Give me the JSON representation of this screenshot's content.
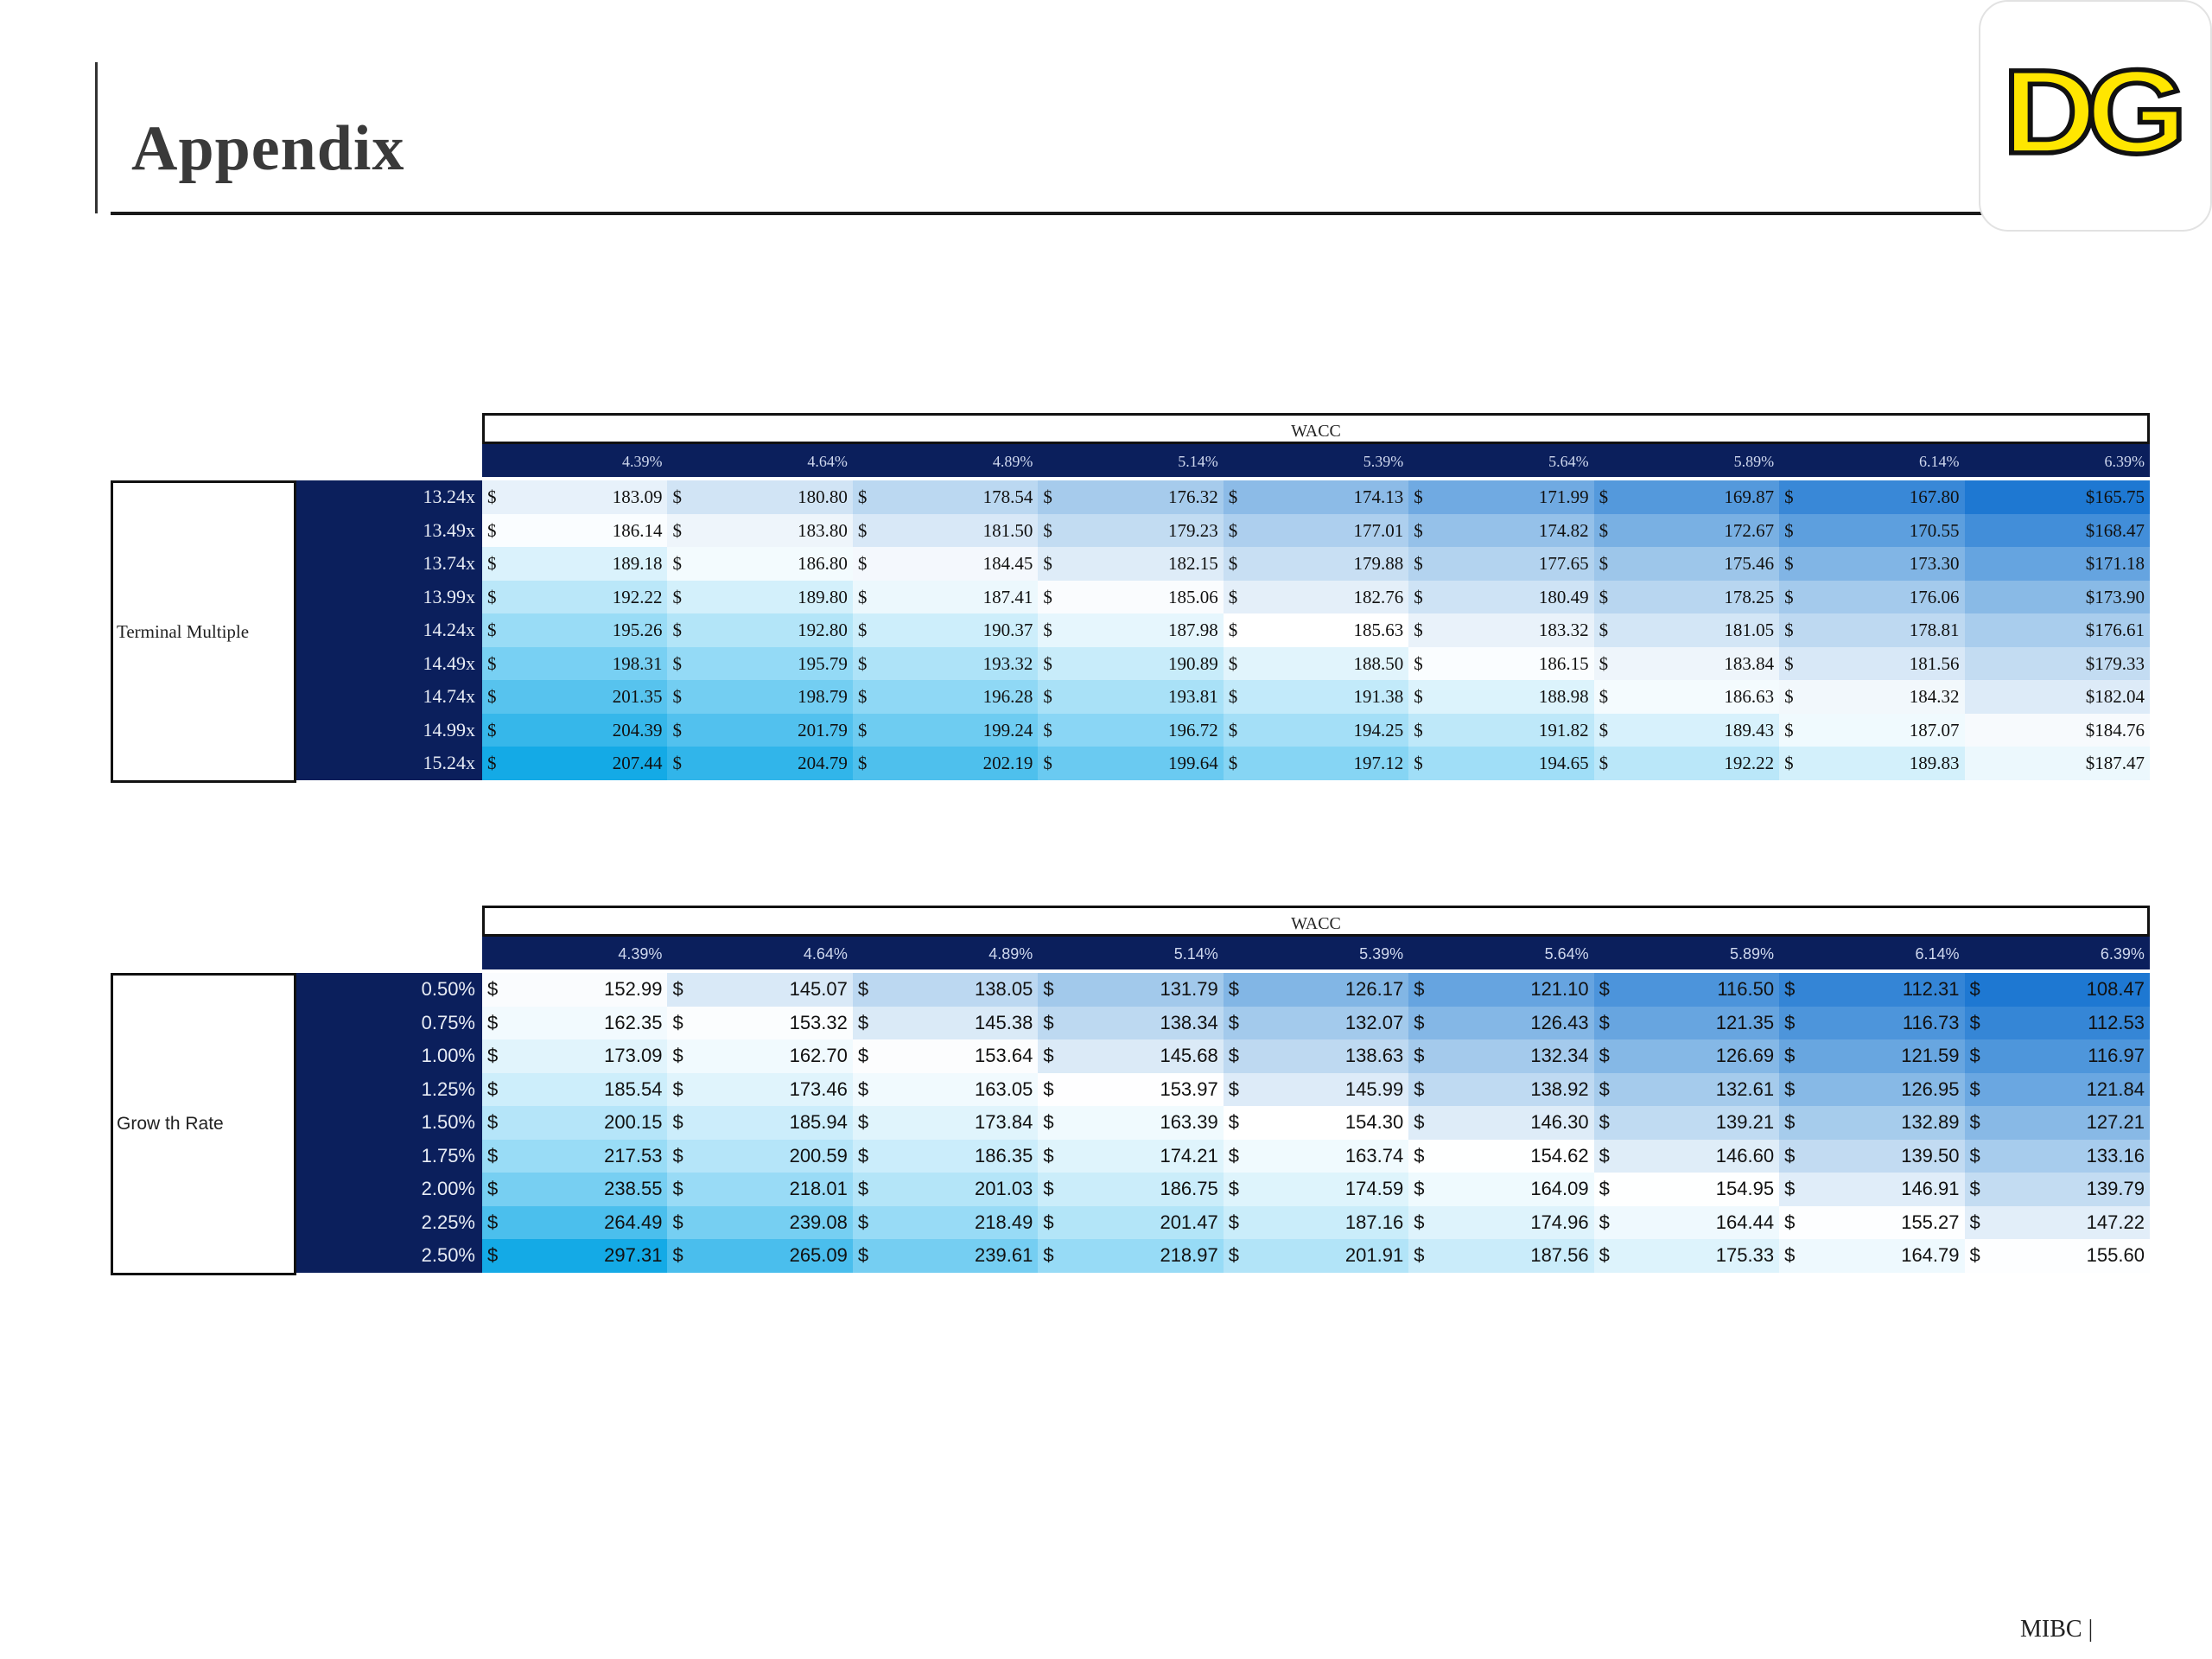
{
  "header": {
    "title": "Appendix",
    "logo_text": "DG"
  },
  "colors": {
    "navy": "#0b1f5c",
    "heat_light": "#ffffff",
    "heat_mid": "#a9d8f0",
    "heat_dark": "#1a86d6"
  },
  "tables": [
    {
      "column_group_label": "WACC",
      "row_label": "Terminal Multiple",
      "columns": [
        "4.39%",
        "4.64%",
        "4.89%",
        "5.14%",
        "5.39%",
        "5.64%",
        "5.89%",
        "6.14%",
        "6.39%"
      ],
      "rows": [
        {
          "label": "13.24x",
          "cells": [
            [
              "$",
              "183.09"
            ],
            [
              "$",
              "180.80"
            ],
            [
              "$",
              "178.54"
            ],
            [
              "$",
              "176.32"
            ],
            [
              "$",
              "174.13"
            ],
            [
              "$",
              "171.99"
            ],
            [
              "$",
              "169.87"
            ],
            [
              "$",
              "167.80"
            ],
            [
              "",
              "$165.75"
            ]
          ]
        },
        {
          "label": "13.49x",
          "cells": [
            [
              "$",
              "186.14"
            ],
            [
              "$",
              "183.80"
            ],
            [
              "$",
              "181.50"
            ],
            [
              "$",
              "179.23"
            ],
            [
              "$",
              "177.01"
            ],
            [
              "$",
              "174.82"
            ],
            [
              "$",
              "172.67"
            ],
            [
              "$",
              "170.55"
            ],
            [
              "",
              "$168.47"
            ]
          ]
        },
        {
          "label": "13.74x",
          "cells": [
            [
              "$",
              "189.18"
            ],
            [
              "$",
              "186.80"
            ],
            [
              "$",
              "184.45"
            ],
            [
              "$",
              "182.15"
            ],
            [
              "$",
              "179.88"
            ],
            [
              "$",
              "177.65"
            ],
            [
              "$",
              "175.46"
            ],
            [
              "$",
              "173.30"
            ],
            [
              "",
              "$171.18"
            ]
          ]
        },
        {
          "label": "13.99x",
          "cells": [
            [
              "$",
              "192.22"
            ],
            [
              "$",
              "189.80"
            ],
            [
              "$",
              "187.41"
            ],
            [
              "$",
              "185.06"
            ],
            [
              "$",
              "182.76"
            ],
            [
              "$",
              "180.49"
            ],
            [
              "$",
              "178.25"
            ],
            [
              "$",
              "176.06"
            ],
            [
              "",
              "$173.90"
            ]
          ]
        },
        {
          "label": "14.24x",
          "cells": [
            [
              "$",
              "195.26"
            ],
            [
              "$",
              "192.80"
            ],
            [
              "$",
              "190.37"
            ],
            [
              "$",
              "187.98"
            ],
            [
              "$",
              "185.63"
            ],
            [
              "$",
              "183.32"
            ],
            [
              "$",
              "181.05"
            ],
            [
              "$",
              "178.81"
            ],
            [
              "",
              "$176.61"
            ]
          ]
        },
        {
          "label": "14.49x",
          "cells": [
            [
              "$",
              "198.31"
            ],
            [
              "$",
              "195.79"
            ],
            [
              "$",
              "193.32"
            ],
            [
              "$",
              "190.89"
            ],
            [
              "$",
              "188.50"
            ],
            [
              "$",
              "186.15"
            ],
            [
              "$",
              "183.84"
            ],
            [
              "$",
              "181.56"
            ],
            [
              "",
              "$179.33"
            ]
          ]
        },
        {
          "label": "14.74x",
          "cells": [
            [
              "$",
              "201.35"
            ],
            [
              "$",
              "198.79"
            ],
            [
              "$",
              "196.28"
            ],
            [
              "$",
              "193.81"
            ],
            [
              "$",
              "191.38"
            ],
            [
              "$",
              "188.98"
            ],
            [
              "$",
              "186.63"
            ],
            [
              "$",
              "184.32"
            ],
            [
              "",
              "$182.04"
            ]
          ]
        },
        {
          "label": "14.99x",
          "cells": [
            [
              "$",
              "204.39"
            ],
            [
              "$",
              "201.79"
            ],
            [
              "$",
              "199.24"
            ],
            [
              "$",
              "196.72"
            ],
            [
              "$",
              "194.25"
            ],
            [
              "$",
              "191.82"
            ],
            [
              "$",
              "189.43"
            ],
            [
              "$",
              "187.07"
            ],
            [
              "",
              "$184.76"
            ]
          ]
        },
        {
          "label": "15.24x",
          "cells": [
            [
              "$",
              "207.44"
            ],
            [
              "$",
              "204.79"
            ],
            [
              "$",
              "202.19"
            ],
            [
              "$",
              "199.64"
            ],
            [
              "$",
              "197.12"
            ],
            [
              "$",
              "194.65"
            ],
            [
              "$",
              "192.22"
            ],
            [
              "$",
              "189.83"
            ],
            [
              "",
              "$187.47"
            ]
          ]
        }
      ]
    },
    {
      "column_group_label": "WACC",
      "row_label": "Grow th Rate",
      "columns": [
        "4.39%",
        "4.64%",
        "4.89%",
        "5.14%",
        "5.39%",
        "5.64%",
        "5.89%",
        "6.14%",
        "6.39%"
      ],
      "rows": [
        {
          "label": "0.50%",
          "cells": [
            [
              "$",
              "152.99"
            ],
            [
              "$",
              "145.07"
            ],
            [
              "$",
              "138.05"
            ],
            [
              "$",
              "131.79"
            ],
            [
              "$",
              "126.17"
            ],
            [
              "$",
              "121.10"
            ],
            [
              "$",
              "116.50"
            ],
            [
              "$",
              "112.31"
            ],
            [
              "$",
              "108.47"
            ]
          ]
        },
        {
          "label": "0.75%",
          "cells": [
            [
              "$",
              "162.35"
            ],
            [
              "$",
              "153.32"
            ],
            [
              "$",
              "145.38"
            ],
            [
              "$",
              "138.34"
            ],
            [
              "$",
              "132.07"
            ],
            [
              "$",
              "126.43"
            ],
            [
              "$",
              "121.35"
            ],
            [
              "$",
              "116.73"
            ],
            [
              "$",
              "112.53"
            ]
          ]
        },
        {
          "label": "1.00%",
          "cells": [
            [
              "$",
              "173.09"
            ],
            [
              "$",
              "162.70"
            ],
            [
              "$",
              "153.64"
            ],
            [
              "$",
              "145.68"
            ],
            [
              "$",
              "138.63"
            ],
            [
              "$",
              "132.34"
            ],
            [
              "$",
              "126.69"
            ],
            [
              "$",
              "121.59"
            ],
            [
              "$",
              "116.97"
            ]
          ]
        },
        {
          "label": "1.25%",
          "cells": [
            [
              "$",
              "185.54"
            ],
            [
              "$",
              "173.46"
            ],
            [
              "$",
              "163.05"
            ],
            [
              "$",
              "153.97"
            ],
            [
              "$",
              "145.99"
            ],
            [
              "$",
              "138.92"
            ],
            [
              "$",
              "132.61"
            ],
            [
              "$",
              "126.95"
            ],
            [
              "$",
              "121.84"
            ]
          ]
        },
        {
          "label": "1.50%",
          "cells": [
            [
              "$",
              "200.15"
            ],
            [
              "$",
              "185.94"
            ],
            [
              "$",
              "173.84"
            ],
            [
              "$",
              "163.39"
            ],
            [
              "$",
              "154.30"
            ],
            [
              "$",
              "146.30"
            ],
            [
              "$",
              "139.21"
            ],
            [
              "$",
              "132.89"
            ],
            [
              "$",
              "127.21"
            ]
          ]
        },
        {
          "label": "1.75%",
          "cells": [
            [
              "$",
              "217.53"
            ],
            [
              "$",
              "200.59"
            ],
            [
              "$",
              "186.35"
            ],
            [
              "$",
              "174.21"
            ],
            [
              "$",
              "163.74"
            ],
            [
              "$",
              "154.62"
            ],
            [
              "$",
              "146.60"
            ],
            [
              "$",
              "139.50"
            ],
            [
              "$",
              "133.16"
            ]
          ]
        },
        {
          "label": "2.00%",
          "cells": [
            [
              "$",
              "238.55"
            ],
            [
              "$",
              "218.01"
            ],
            [
              "$",
              "201.03"
            ],
            [
              "$",
              "186.75"
            ],
            [
              "$",
              "174.59"
            ],
            [
              "$",
              "164.09"
            ],
            [
              "$",
              "154.95"
            ],
            [
              "$",
              "146.91"
            ],
            [
              "$",
              "139.79"
            ]
          ]
        },
        {
          "label": "2.25%",
          "cells": [
            [
              "$",
              "264.49"
            ],
            [
              "$",
              "239.08"
            ],
            [
              "$",
              "218.49"
            ],
            [
              "$",
              "201.47"
            ],
            [
              "$",
              "187.16"
            ],
            [
              "$",
              "174.96"
            ],
            [
              "$",
              "164.44"
            ],
            [
              "$",
              "155.27"
            ],
            [
              "$",
              "147.22"
            ]
          ]
        },
        {
          "label": "2.50%",
          "cells": [
            [
              "$",
              "297.31"
            ],
            [
              "$",
              "265.09"
            ],
            [
              "$",
              "239.61"
            ],
            [
              "$",
              "218.97"
            ],
            [
              "$",
              "201.91"
            ],
            [
              "$",
              "187.56"
            ],
            [
              "$",
              "175.33"
            ],
            [
              "$",
              "164.79"
            ],
            [
              "$",
              "155.60"
            ]
          ]
        }
      ]
    }
  ],
  "footer": {
    "text": "MIBC |"
  }
}
